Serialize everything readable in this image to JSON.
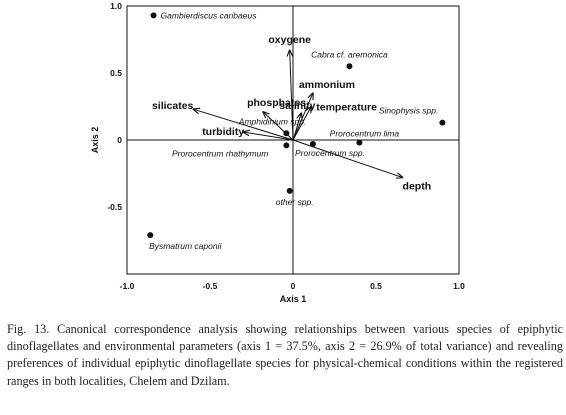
{
  "chart_data": {
    "type": "scatter",
    "subtype": "ordination-biplot",
    "title": "",
    "xlabel": "Axis 1",
    "ylabel": "Axis 2",
    "xlim": [
      -1.0,
      1.0
    ],
    "ylim": [
      -1.0,
      1.0
    ],
    "xticks": [
      {
        "value": -1.0,
        "label": "-1.0"
      },
      {
        "value": -0.5,
        "label": "-0.5"
      },
      {
        "value": 0.0,
        "label": "0"
      },
      {
        "value": 0.5,
        "label": "0.5"
      },
      {
        "value": 1.0,
        "label": "1.0"
      }
    ],
    "yticks": [
      {
        "value": 1.0,
        "label": "1.0"
      },
      {
        "value": 0.5,
        "label": "0.5"
      },
      {
        "value": 0.0,
        "label": "0"
      },
      {
        "value": -0.5,
        "label": "-0.5"
      }
    ],
    "species": [
      {
        "name": "Gambierdiscus caribaeus",
        "x": -0.84,
        "y": 0.93
      },
      {
        "name": "Cabra cf. aremonica",
        "x": 0.34,
        "y": 0.55
      },
      {
        "name": "Sinophysis spp.",
        "x": 0.9,
        "y": 0.13
      },
      {
        "name": "Amphidinium spp.",
        "x": -0.04,
        "y": 0.05
      },
      {
        "name": "Prorocentrum lima",
        "x": 0.4,
        "y": -0.02
      },
      {
        "name": "Prorocentrum rhathymum",
        "x": -0.04,
        "y": -0.04
      },
      {
        "name": "Prorocentrum spp.",
        "x": 0.12,
        "y": -0.03
      },
      {
        "name": "other spp.",
        "x": -0.02,
        "y": -0.38
      },
      {
        "name": "Bysmatrum caponii",
        "x": -0.86,
        "y": -0.71
      }
    ],
    "environmental_vectors": [
      {
        "name": "oxygene",
        "x": -0.02,
        "y": 0.67
      },
      {
        "name": "ammonium",
        "x": 0.12,
        "y": 0.35
      },
      {
        "name": "temperature",
        "x": 0.11,
        "y": 0.25
      },
      {
        "name": "salinity",
        "x": 0.05,
        "y": 0.2
      },
      {
        "name": "phosphates",
        "x": -0.18,
        "y": 0.21
      },
      {
        "name": "silicates",
        "x": -0.6,
        "y": 0.23
      },
      {
        "name": "turbidity",
        "x": -0.3,
        "y": 0.06
      },
      {
        "name": "depth",
        "x": 0.66,
        "y": -0.28
      }
    ],
    "grid": false,
    "legend": "none"
  },
  "caption": "Fig. 13. Canonical correspondence analysis showing relationships between various species of epiphytic dinoflagellates and environmental parameters (axis 1 = 37.5%, axis 2 = 26.9% of total variance) and revealing preferences of individual epiphytic dinoflagellate species for physical-chemical conditions within the registered ranges in both localities, Chelem and Dzilam."
}
